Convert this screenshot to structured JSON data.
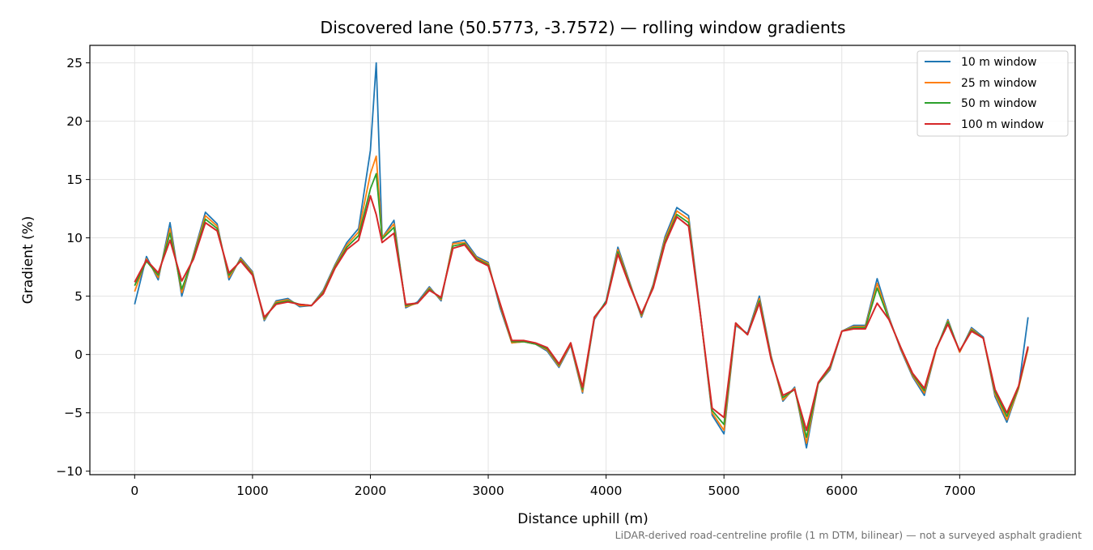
{
  "chart_data": {
    "type": "line",
    "title": "Discovered lane (50.5773, -3.7572) — rolling window gradients",
    "xlabel": "Distance uphill (m)",
    "ylabel": "Gradient (%)",
    "footnote": "LiDAR-derived road-centreline profile (1 m DTM, bilinear) — not a surveyed asphalt gradient",
    "xlim": [
      -380,
      7980
    ],
    "ylim": [
      -10.3,
      26.5
    ],
    "x_ticks": [
      0,
      1000,
      2000,
      3000,
      4000,
      5000,
      6000,
      7000
    ],
    "y_ticks": [
      -10,
      -5,
      0,
      5,
      10,
      15,
      20,
      25
    ],
    "grid": true,
    "legend_position": "top-right",
    "x": [
      0,
      100,
      200,
      300,
      400,
      500,
      600,
      700,
      800,
      900,
      1000,
      1100,
      1200,
      1300,
      1400,
      1500,
      1600,
      1700,
      1800,
      1900,
      2000,
      2050,
      2100,
      2200,
      2300,
      2400,
      2500,
      2600,
      2700,
      2800,
      2900,
      3000,
      3100,
      3200,
      3300,
      3400,
      3500,
      3600,
      3700,
      3800,
      3900,
      4000,
      4100,
      4200,
      4300,
      4400,
      4500,
      4600,
      4700,
      4800,
      4900,
      5000,
      5100,
      5200,
      5300,
      5400,
      5500,
      5600,
      5700,
      5800,
      5900,
      6000,
      6100,
      6200,
      6300,
      6400,
      6500,
      6600,
      6700,
      6800,
      6900,
      7000,
      7100,
      7200,
      7300,
      7400,
      7500,
      7580
    ],
    "series": [
      {
        "name": "10 m window",
        "color": "#1f77b4",
        "values": [
          4.3,
          8.4,
          6.4,
          11.3,
          5.0,
          8.6,
          12.2,
          11.2,
          6.4,
          8.3,
          7.1,
          2.9,
          4.6,
          4.8,
          4.1,
          4.2,
          5.5,
          7.7,
          9.6,
          10.8,
          17.5,
          25.0,
          10.0,
          11.5,
          4.0,
          4.5,
          5.8,
          4.6,
          9.6,
          9.8,
          8.4,
          7.9,
          4.0,
          1.0,
          1.1,
          0.9,
          0.3,
          -1.1,
          0.8,
          -3.3,
          3.0,
          4.6,
          9.2,
          6.2,
          3.2,
          6.0,
          10.1,
          12.6,
          11.9,
          3.5,
          -5.2,
          -6.8,
          2.5,
          1.8,
          5.0,
          -0.1,
          -4.0,
          -2.8,
          -8.0,
          -2.5,
          -1.3,
          2.0,
          2.5,
          2.5,
          6.5,
          3.2,
          0.4,
          -1.9,
          -3.5,
          0.4,
          3.0,
          0.2,
          2.3,
          1.5,
          -3.6,
          -5.8,
          -2.9,
          3.2
        ]
      },
      {
        "name": "25 m window",
        "color": "#ff7f0e",
        "values": [
          5.4,
          8.2,
          6.6,
          10.8,
          5.3,
          8.5,
          11.9,
          11.0,
          6.6,
          8.2,
          7.0,
          3.0,
          4.5,
          4.7,
          4.2,
          4.2,
          5.4,
          7.6,
          9.4,
          10.5,
          15.5,
          17.0,
          10.0,
          11.2,
          4.1,
          4.4,
          5.7,
          4.7,
          9.5,
          9.6,
          8.3,
          7.8,
          4.2,
          1.0,
          1.1,
          0.9,
          0.4,
          -1.0,
          0.9,
          -3.2,
          3.1,
          4.5,
          9.0,
          6.1,
          3.3,
          5.9,
          9.9,
          12.3,
          11.6,
          3.4,
          -5.0,
          -6.5,
          2.6,
          1.7,
          4.8,
          -0.2,
          -3.9,
          -2.9,
          -7.6,
          -2.5,
          -1.2,
          2.0,
          2.4,
          2.4,
          6.1,
          3.1,
          0.5,
          -1.8,
          -3.3,
          0.4,
          2.9,
          0.2,
          2.2,
          1.4,
          -3.4,
          -5.6,
          -2.9,
          0.5
        ]
      },
      {
        "name": "50 m window",
        "color": "#2ca02c",
        "values": [
          5.9,
          8.0,
          6.8,
          10.4,
          5.6,
          8.4,
          11.6,
          10.8,
          6.8,
          8.1,
          6.9,
          3.1,
          4.4,
          4.6,
          4.3,
          4.2,
          5.3,
          7.5,
          9.2,
          10.2,
          14.2,
          15.5,
          9.9,
          10.9,
          4.2,
          4.4,
          5.6,
          4.8,
          9.3,
          9.5,
          8.2,
          7.7,
          4.3,
          1.1,
          1.1,
          0.9,
          0.5,
          -0.9,
          1.0,
          -3.0,
          3.2,
          4.5,
          8.8,
          6.0,
          3.4,
          5.8,
          9.7,
          12.0,
          11.3,
          3.4,
          -4.8,
          -6.0,
          2.7,
          1.7,
          4.6,
          -0.3,
          -3.7,
          -3.0,
          -7.1,
          -2.5,
          -1.1,
          2.0,
          2.3,
          2.3,
          5.7,
          3.0,
          0.6,
          -1.7,
          -3.1,
          0.5,
          2.8,
          0.3,
          2.1,
          1.4,
          -3.2,
          -5.3,
          -2.8,
          0.6
        ]
      },
      {
        "name": "100 m window",
        "color": "#d62728",
        "values": [
          6.2,
          8.1,
          7.0,
          9.8,
          6.3,
          8.2,
          11.3,
          10.6,
          7.0,
          8.0,
          6.8,
          3.2,
          4.3,
          4.5,
          4.3,
          4.2,
          5.2,
          7.4,
          9.0,
          9.8,
          13.6,
          12.0,
          9.6,
          10.4,
          4.3,
          4.4,
          5.5,
          4.9,
          9.1,
          9.4,
          8.1,
          7.6,
          4.4,
          1.2,
          1.2,
          1.0,
          0.6,
          -0.8,
          1.0,
          -2.8,
          3.2,
          4.4,
          8.6,
          5.9,
          3.5,
          5.7,
          9.5,
          11.8,
          11.0,
          3.4,
          -4.6,
          -5.4,
          2.7,
          1.7,
          4.4,
          -0.4,
          -3.5,
          -3.0,
          -6.5,
          -2.4,
          -1.0,
          2.0,
          2.2,
          2.2,
          4.4,
          3.0,
          0.6,
          -1.6,
          -2.9,
          0.5,
          2.6,
          0.3,
          2.0,
          1.4,
          -3.0,
          -5.0,
          -2.7,
          0.7
        ]
      }
    ]
  }
}
